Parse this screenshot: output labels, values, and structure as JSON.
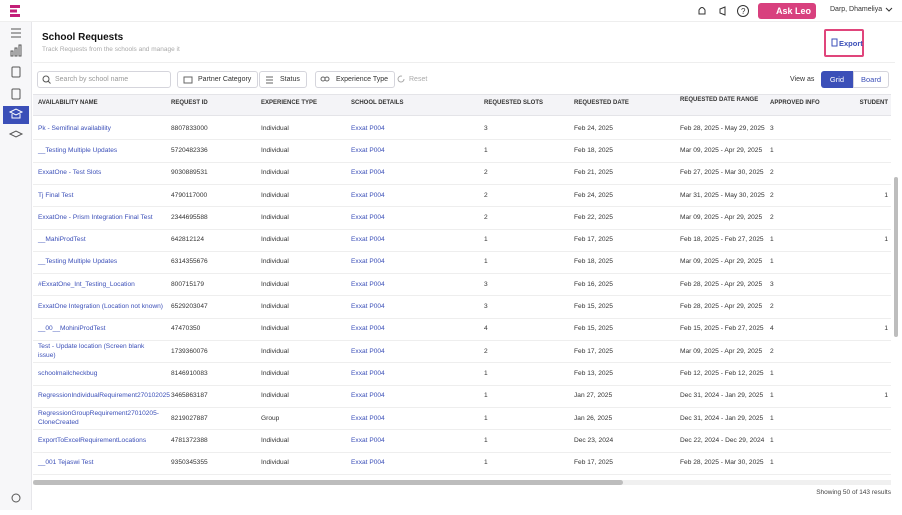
{
  "topbar": {
    "ask_leo": "Ask Leo",
    "user": "Darp, Dhameliya"
  },
  "header": {
    "title": "School Requests",
    "subtitle": "Track Requests from the schools and manage it",
    "export": "Export"
  },
  "toolbar": {
    "search_placeholder": "Search by school name",
    "filters": [
      "Partner Category",
      "Status",
      "Experience Type"
    ],
    "reset": "Reset",
    "view_as": "View as",
    "views": [
      "Grid",
      "Board"
    ]
  },
  "table": {
    "columns": [
      "AVAILABILITY NAME",
      "REQUEST ID",
      "EXPERIENCE TYPE",
      "SCHOOL DETAILS",
      "REQUESTED SLOTS",
      "REQUESTED DATE",
      "REQUESTED DATE RANGE",
      "APPROVED INFO",
      "STUDENT"
    ],
    "rows": [
      {
        "name": "Pk - Semifinal availability",
        "id": "8807833000",
        "type": "Individual",
        "school": "Exxat P004",
        "slots": 3,
        "date": "Feb 24, 2025",
        "range": "Feb 28, 2025 - May 29, 2025",
        "approved": 3
      },
      {
        "name": "__Testing Multiple Updates",
        "id": "5720482336",
        "type": "Individual",
        "school": "Exxat P004",
        "slots": 1,
        "date": "Feb 18, 2025",
        "range": "Mar 09, 2025 - Apr 29, 2025",
        "approved": 1
      },
      {
        "name": "ExxatOne - Test Slots",
        "id": "9030889531",
        "type": "Individual",
        "school": "Exxat P004",
        "slots": 2,
        "date": "Feb 21, 2025",
        "range": "Feb 27, 2025 - Mar 30, 2025",
        "approved": 2
      },
      {
        "name": "Tj Final Test",
        "id": "4790117000",
        "type": "Individual",
        "school": "Exxat P004",
        "slots": 2,
        "date": "Feb 24, 2025",
        "range": "Mar 31, 2025 - May 30, 2025",
        "approved": 2,
        "student": 1
      },
      {
        "name": "ExxatOne - Prism Integration Final Test",
        "id": "2344695588",
        "type": "Individual",
        "school": "Exxat P004",
        "slots": 2,
        "date": "Feb 22, 2025",
        "range": "Mar 09, 2025 - Apr 29, 2025",
        "approved": 2
      },
      {
        "name": "__MahiProdTest",
        "id": "642812124",
        "type": "Individual",
        "school": "Exxat P004",
        "slots": 1,
        "date": "Feb 17, 2025",
        "range": "Feb 18, 2025 - Feb 27, 2025",
        "approved": 1,
        "student": 1
      },
      {
        "name": "__Testing Multiple Updates",
        "id": "6314355676",
        "type": "Individual",
        "school": "Exxat P004",
        "slots": 1,
        "date": "Feb 18, 2025",
        "range": "Mar 09, 2025 - Apr 29, 2025",
        "approved": 1
      },
      {
        "name": "#ExxatOne_Int_Testing_Location",
        "id": "800715179",
        "type": "Individual",
        "school": "Exxat P004",
        "slots": 3,
        "date": "Feb 16, 2025",
        "range": "Feb 28, 2025 - Apr 29, 2025",
        "approved": 3
      },
      {
        "name": "ExxatOne Integration (Location not known)",
        "id": "6529203047",
        "type": "Individual",
        "school": "Exxat P004",
        "slots": 3,
        "date": "Feb 15, 2025",
        "range": "Feb 28, 2025 - Apr 29, 2025",
        "approved": 2
      },
      {
        "name": "__00__MohiniProdTest",
        "id": "47470350",
        "type": "Individual",
        "school": "Exxat P004",
        "slots": 4,
        "date": "Feb 15, 2025",
        "range": "Feb 15, 2025 - Feb 27, 2025",
        "approved": 4,
        "student": 1
      },
      {
        "name": "Test - Update location (Screen blank issue)",
        "id": "1739360076",
        "type": "Individual",
        "school": "Exxat P004",
        "slots": 2,
        "date": "Feb 17, 2025",
        "range": "Mar 09, 2025 - Apr 29, 2025",
        "approved": 2
      },
      {
        "name": "schoolmailcheckbug",
        "id": "8146910083",
        "type": "Individual",
        "school": "Exxat P004",
        "slots": 1,
        "date": "Feb 13, 2025",
        "range": "Feb 12, 2025 - Feb 12, 2025",
        "approved": 1
      },
      {
        "name": "RegressionIndividualRequirement270102025",
        "id": "3465863187",
        "type": "Individual",
        "school": "Exxat P004",
        "slots": 1,
        "date": "Jan 27, 2025",
        "range": "Dec 31, 2024 - Jan 29, 2025",
        "approved": 1,
        "student": 1
      },
      {
        "name": "RegressionGroupRequirement27010205-CloneCreated",
        "id": "8219027887",
        "type": "Group",
        "school": "Exxat P004",
        "slots": 1,
        "date": "Jan 26, 2025",
        "range": "Dec 31, 2024 - Jan 29, 2025",
        "approved": 1
      },
      {
        "name": "ExportToExcelRequirementLocations",
        "id": "4781372388",
        "type": "Individual",
        "school": "Exxat P004",
        "slots": 1,
        "date": "Dec 23, 2024",
        "range": "Dec 22, 2024 - Dec 29, 2024",
        "approved": 1
      },
      {
        "name": "__001 Tejaswi Test",
        "id": "9350345355",
        "type": "Individual",
        "school": "Exxat P004",
        "slots": 1,
        "date": "Feb 17, 2025",
        "range": "Feb 28, 2025 - Mar 30, 2025",
        "approved": 1
      }
    ]
  },
  "footer": {
    "showing": "Showing 50 of 143 results"
  }
}
